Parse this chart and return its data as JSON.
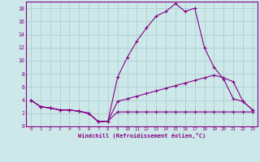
{
  "xlabel": "Windchill (Refroidissement éolien,°C)",
  "x": [
    0,
    1,
    2,
    3,
    4,
    5,
    6,
    7,
    8,
    9,
    10,
    11,
    12,
    13,
    14,
    15,
    16,
    17,
    18,
    19,
    20,
    21,
    22,
    23
  ],
  "line1": [
    4.0,
    3.0,
    2.8,
    2.5,
    2.5,
    2.3,
    2.0,
    0.7,
    0.8,
    2.2,
    2.2,
    2.2,
    2.2,
    2.2,
    2.2,
    2.2,
    2.2,
    2.2,
    2.2,
    2.2,
    2.2,
    2.2,
    2.2,
    2.2
  ],
  "line2": [
    4.0,
    3.0,
    2.8,
    2.5,
    2.5,
    2.3,
    2.0,
    0.7,
    0.8,
    7.5,
    10.5,
    13.0,
    15.0,
    16.8,
    17.5,
    18.7,
    17.5,
    18.0,
    12.0,
    9.0,
    7.2,
    4.2,
    3.8,
    2.5
  ],
  "line3": [
    4.0,
    3.0,
    2.8,
    2.5,
    2.5,
    2.3,
    2.0,
    0.7,
    0.8,
    3.8,
    4.2,
    4.6,
    5.0,
    5.4,
    5.8,
    6.2,
    6.6,
    7.0,
    7.4,
    7.8,
    7.4,
    6.8,
    3.8,
    2.5
  ],
  "bg_color": "#cce8e8",
  "line_color": "#880088",
  "grid_color": "#aacaca",
  "xlim_min": -0.5,
  "xlim_max": 23.5,
  "ylim_min": 0,
  "ylim_max": 19,
  "yticks": [
    0,
    2,
    4,
    6,
    8,
    10,
    12,
    14,
    16,
    18
  ],
  "xticks": [
    0,
    1,
    2,
    3,
    4,
    5,
    6,
    7,
    8,
    9,
    10,
    11,
    12,
    13,
    14,
    15,
    16,
    17,
    18,
    19,
    20,
    21,
    22,
    23
  ]
}
